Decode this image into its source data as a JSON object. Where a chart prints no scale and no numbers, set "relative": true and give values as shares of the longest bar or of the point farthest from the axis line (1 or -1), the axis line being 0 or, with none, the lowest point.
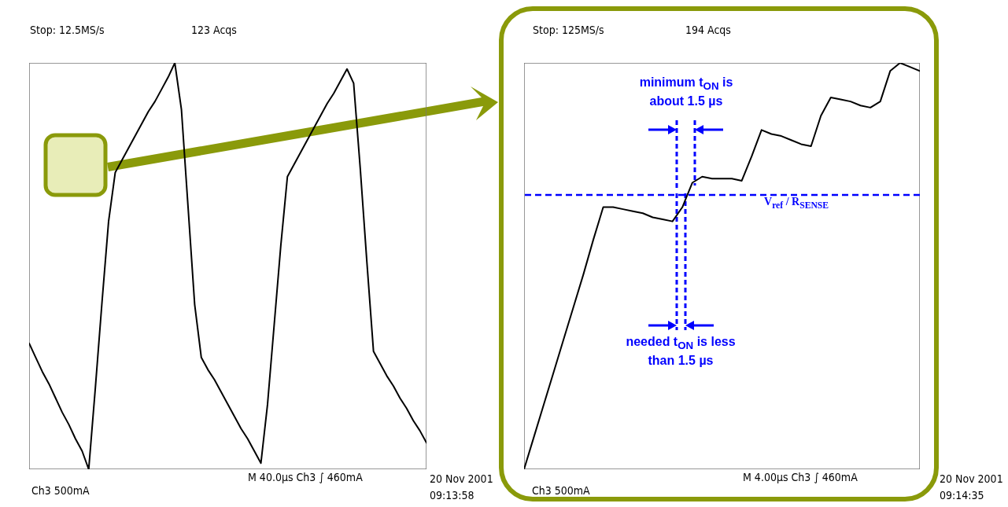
{
  "chart_data": [
    {
      "type": "line",
      "relative": true,
      "color": "#000000",
      "categories": [
        null,
        null,
        null,
        null,
        null,
        null,
        null,
        null,
        null,
        null,
        null,
        null,
        null,
        null,
        null,
        null,
        null,
        null,
        null,
        null,
        null,
        null,
        null,
        null,
        null,
        null,
        null,
        null,
        null,
        null,
        null,
        null,
        null,
        null,
        null,
        null,
        null,
        null,
        null,
        null,
        null,
        null,
        null,
        null,
        null,
        null,
        null,
        null,
        null,
        null,
        null,
        null,
        null,
        null,
        null,
        null,
        null,
        null,
        null,
        null,
        null
      ],
      "values": [
        0.31,
        0.275,
        0.24,
        0.21,
        0.175,
        0.14,
        0.11,
        0.075,
        0.045,
        0,
        0.2,
        0.41,
        0.61,
        0.73,
        0.76,
        0.79,
        0.82,
        0.85,
        0.88,
        0.905,
        0.935,
        0.965,
        1,
        0.885,
        0.645,
        0.405,
        0.275,
        0.245,
        0.22,
        0.19,
        0.16,
        0.13,
        0.1,
        0.075,
        0.045,
        0.015,
        0.16,
        0.355,
        0.55,
        0.72,
        0.75,
        0.78,
        0.81,
        0.84,
        0.87,
        0.9,
        0.925,
        0.955,
        0.985,
        0.95,
        0.74,
        0.51,
        0.29,
        0.26,
        0.23,
        0.205,
        0.175,
        0.15,
        0.12,
        0.095,
        0.065
      ],
      "annotations": [
        "Stop: 12.5MS/s",
        "123 Acqs",
        "M 40.0µs  Ch3 ∫  460mA",
        "Ch3  500mA",
        "20 Nov 2001",
        "09:13:58"
      ]
    },
    {
      "type": "line",
      "relative": true,
      "color": "#000000",
      "categories": [
        null,
        null,
        null,
        null,
        null,
        null,
        null,
        null,
        null,
        null,
        null,
        null,
        null,
        null,
        null,
        null,
        null,
        null,
        null,
        null,
        null,
        null,
        null,
        null,
        null,
        null,
        null,
        null,
        null,
        null,
        null,
        null,
        null,
        null,
        null,
        null,
        null,
        null,
        null,
        null,
        null
      ],
      "values": [
        0,
        0.08,
        0.16,
        0.24,
        0.32,
        0.4,
        0.48,
        0.565,
        0.645,
        0.645,
        0.64,
        0.635,
        0.63,
        0.62,
        0.615,
        0.61,
        0.645,
        0.705,
        0.72,
        0.715,
        0.715,
        0.715,
        0.71,
        0.77,
        0.835,
        0.825,
        0.82,
        0.81,
        0.8,
        0.795,
        0.87,
        0.915,
        0.91,
        0.905,
        0.895,
        0.89,
        0.905,
        0.98,
        1,
        0.99,
        0.98
      ],
      "ref_lines": [
        {
          "axis": "y",
          "value": 0.675,
          "label": "V$_{ref}$ / R$_{SENSE}$",
          "color": "#0000ff",
          "line_style": "dashed"
        }
      ],
      "annotations": [
        "Stop: 125MS/s",
        "194 Acqs",
        "M 4.00µs  Ch3 ∫  460mA",
        "Ch3  500mA",
        "20 Nov 2001",
        "09:14:35",
        "minimum t$_{ON}$ is about 1.5 µs",
        "needed t$_{ON}$ is less than 1.5 µs"
      ]
    }
  ]
}
